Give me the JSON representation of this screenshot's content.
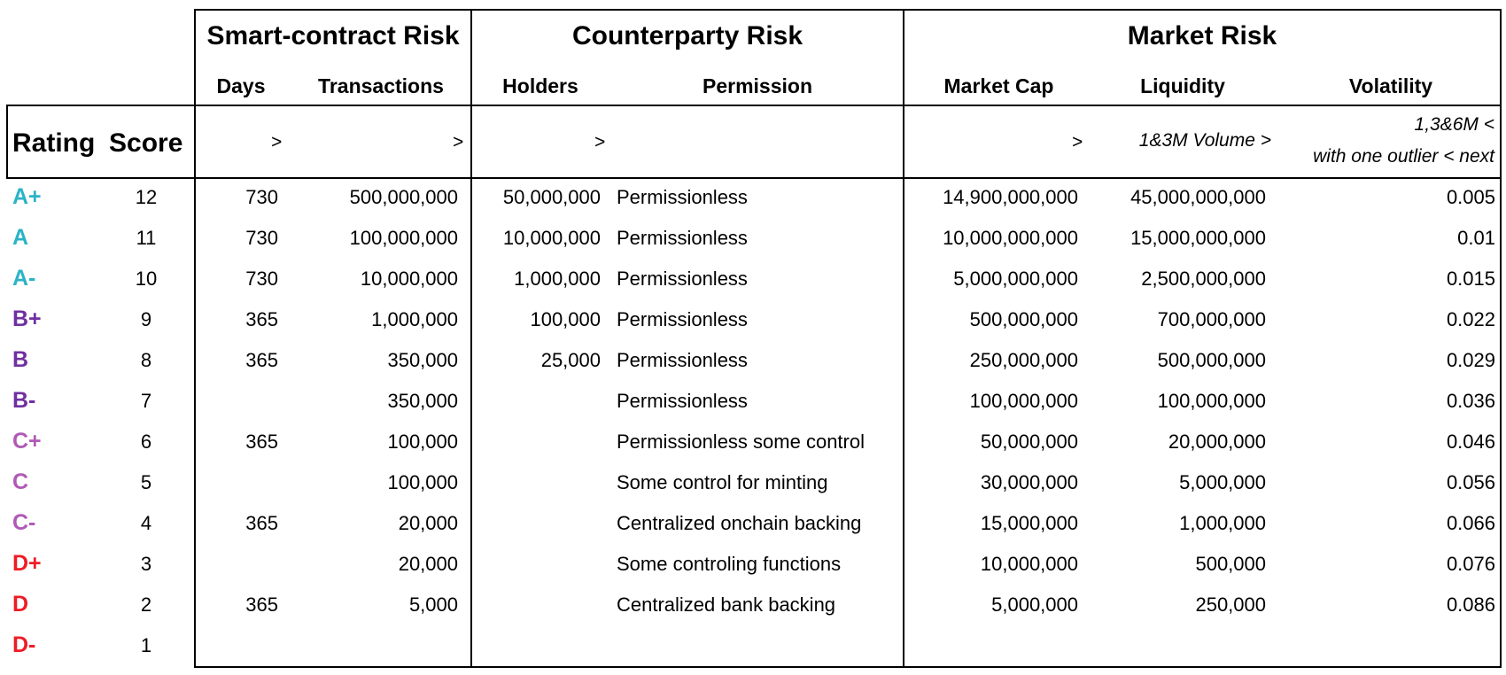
{
  "groups": {
    "smart_contract": "Smart-contract Risk",
    "counterparty": "Counterparty Risk",
    "market": "Market Risk"
  },
  "subheaders": {
    "days": "Days",
    "transactions": "Transactions",
    "holders": "Holders",
    "permission": "Permission",
    "market_cap": "Market Cap",
    "liquidity": "Liquidity",
    "volatility": "Volatility"
  },
  "row_headers": {
    "rating": "Rating",
    "score": "Score"
  },
  "thresholds": {
    "days": ">",
    "transactions": ">",
    "holders": ">",
    "market_cap": ">",
    "liquidity": "1&3M Volume >",
    "volatility_1": "1,3&6M <",
    "volatility_2": "with one outlier < next"
  },
  "colors": {
    "A": "#2bb3c6",
    "B": "#7030a0",
    "C": "#b05ab5",
    "D": "#ee1c25"
  },
  "rows": [
    {
      "rating": "A+",
      "tier": "A",
      "score": "12",
      "days": "730",
      "transactions": "500,000,000",
      "holders": "50,000,000",
      "permission": "Permissionless",
      "market_cap": "14,900,000,000",
      "liquidity": "45,000,000,000",
      "volatility": "0.005"
    },
    {
      "rating": "A",
      "tier": "A",
      "score": "11",
      "days": "730",
      "transactions": "100,000,000",
      "holders": "10,000,000",
      "permission": "Permissionless",
      "market_cap": "10,000,000,000",
      "liquidity": "15,000,000,000",
      "volatility": "0.01"
    },
    {
      "rating": "A-",
      "tier": "A",
      "score": "10",
      "days": "730",
      "transactions": "10,000,000",
      "holders": "1,000,000",
      "permission": "Permissionless",
      "market_cap": "5,000,000,000",
      "liquidity": "2,500,000,000",
      "volatility": "0.015"
    },
    {
      "rating": "B+",
      "tier": "B",
      "score": "9",
      "days": "365",
      "transactions": "1,000,000",
      "holders": "100,000",
      "permission": "Permissionless",
      "market_cap": "500,000,000",
      "liquidity": "700,000,000",
      "volatility": "0.022"
    },
    {
      "rating": "B",
      "tier": "B",
      "score": "8",
      "days": "365",
      "transactions": "350,000",
      "holders": "25,000",
      "permission": "Permissionless",
      "market_cap": "250,000,000",
      "liquidity": "500,000,000",
      "volatility": "0.029"
    },
    {
      "rating": "B-",
      "tier": "B",
      "score": "7",
      "days": "",
      "transactions": "350,000",
      "holders": "",
      "permission": "Permissionless",
      "market_cap": "100,000,000",
      "liquidity": "100,000,000",
      "volatility": "0.036"
    },
    {
      "rating": "C+",
      "tier": "C",
      "score": "6",
      "days": "365",
      "transactions": "100,000",
      "holders": "",
      "permission": "Permissionless some control",
      "market_cap": "50,000,000",
      "liquidity": "20,000,000",
      "volatility": "0.046"
    },
    {
      "rating": "C",
      "tier": "C",
      "score": "5",
      "days": "",
      "transactions": "100,000",
      "holders": "",
      "permission": "Some control for minting",
      "market_cap": "30,000,000",
      "liquidity": "5,000,000",
      "volatility": "0.056"
    },
    {
      "rating": "C-",
      "tier": "C",
      "score": "4",
      "days": "365",
      "transactions": "20,000",
      "holders": "",
      "permission": "Centralized onchain backing",
      "market_cap": "15,000,000",
      "liquidity": "1,000,000",
      "volatility": "0.066"
    },
    {
      "rating": "D+",
      "tier": "D",
      "score": "3",
      "days": "",
      "transactions": "20,000",
      "holders": "",
      "permission": "Some controling functions",
      "market_cap": "10,000,000",
      "liquidity": "500,000",
      "volatility": "0.076"
    },
    {
      "rating": "D",
      "tier": "D",
      "score": "2",
      "days": "365",
      "transactions": "5,000",
      "holders": "",
      "permission": "Centralized bank backing",
      "market_cap": "5,000,000",
      "liquidity": "250,000",
      "volatility": "0.086"
    },
    {
      "rating": "D-",
      "tier": "D",
      "score": "1",
      "days": "",
      "transactions": "",
      "holders": "",
      "permission": "",
      "market_cap": "",
      "liquidity": "",
      "volatility": ""
    }
  ]
}
